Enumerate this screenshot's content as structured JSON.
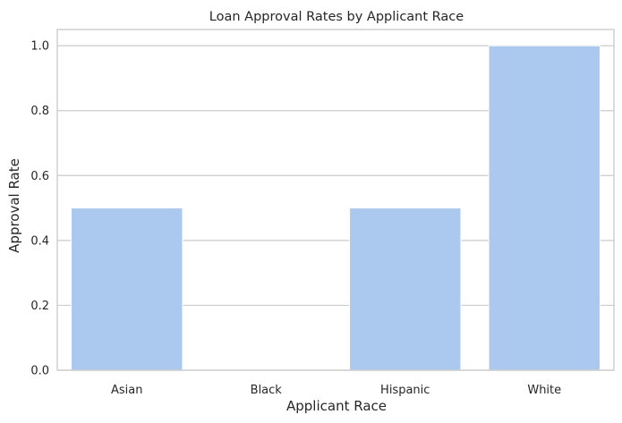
{
  "chart_data": {
    "type": "bar",
    "title": "Loan Approval Rates by Applicant Race",
    "xlabel": "Applicant Race",
    "ylabel": "Approval Rate",
    "categories": [
      "Asian",
      "Black",
      "Hispanic",
      "White"
    ],
    "values": [
      0.5,
      0.0,
      0.5,
      1.0
    ],
    "ylim": [
      0,
      1.05
    ],
    "yticks": [
      "0.0",
      "0.2",
      "0.4",
      "0.6",
      "0.8",
      "1.0"
    ],
    "grid": true,
    "legend": "none",
    "colors": {
      "bar": "#abc9ef",
      "grid": "#cccccc",
      "axes_edge": "#cccccc",
      "text": "#262626"
    }
  }
}
